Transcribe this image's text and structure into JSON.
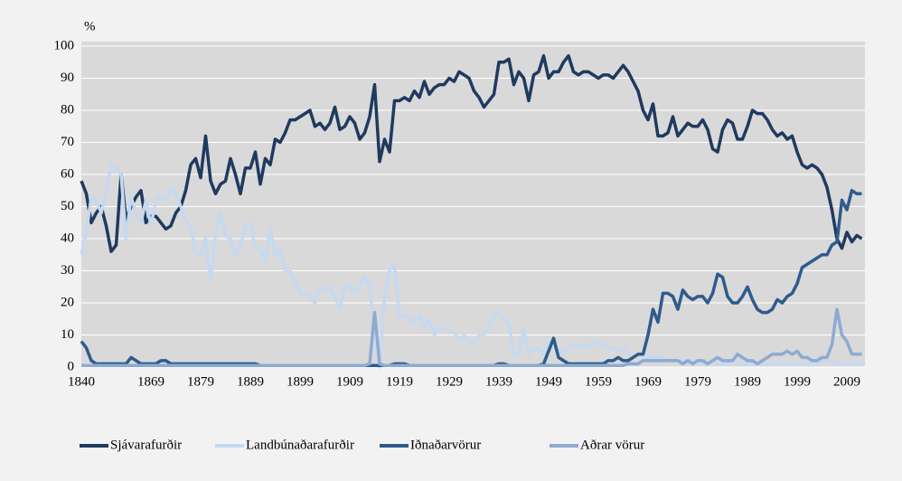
{
  "chart_data": {
    "type": "line",
    "y_label": "%",
    "categories": [
      "1840",
      null,
      null,
      null,
      null,
      null,
      null,
      null,
      null,
      null,
      null,
      null,
      null,
      null,
      "1869",
      null,
      null,
      null,
      null,
      null,
      null,
      null,
      null,
      null,
      "1879",
      null,
      null,
      null,
      null,
      null,
      null,
      null,
      null,
      null,
      "1889",
      null,
      null,
      null,
      null,
      null,
      null,
      null,
      null,
      null,
      "1899",
      null,
      null,
      null,
      null,
      null,
      null,
      null,
      null,
      null,
      "1909",
      null,
      null,
      null,
      null,
      null,
      null,
      null,
      null,
      null,
      "1919",
      null,
      null,
      null,
      null,
      null,
      null,
      null,
      null,
      null,
      "1929",
      null,
      null,
      null,
      null,
      null,
      null,
      null,
      null,
      null,
      "1939",
      null,
      null,
      null,
      null,
      null,
      null,
      null,
      null,
      null,
      "1949",
      null,
      null,
      null,
      null,
      null,
      null,
      null,
      null,
      null,
      "1959",
      null,
      null,
      null,
      null,
      null,
      null,
      null,
      null,
      null,
      "1969",
      null,
      null,
      null,
      null,
      null,
      null,
      null,
      null,
      null,
      "1979",
      null,
      null,
      null,
      null,
      null,
      null,
      null,
      null,
      null,
      "1989",
      null,
      null,
      null,
      null,
      null,
      null,
      null,
      null,
      null,
      "1999",
      null,
      null,
      null,
      null,
      null,
      null,
      null,
      null,
      null,
      "2009",
      null,
      null,
      null
    ],
    "series": [
      {
        "name": "Sjávarafurðir",
        "color": "#1f3a5f",
        "values": [
          58,
          54,
          45,
          48,
          50,
          44,
          36,
          38,
          60,
          46,
          50,
          53,
          55,
          45,
          47,
          47,
          45,
          43,
          44,
          48,
          50,
          55,
          63,
          65,
          59,
          72,
          58,
          54,
          57,
          58,
          65,
          60,
          54,
          62,
          62,
          67,
          57,
          65,
          63,
          71,
          70,
          73,
          77,
          77,
          78,
          79,
          80,
          75,
          76,
          74,
          76,
          81,
          74,
          75,
          78,
          76,
          71,
          73,
          78,
          88,
          64,
          71,
          67,
          83,
          83,
          84,
          83,
          86,
          84,
          89,
          85,
          87,
          88,
          88,
          90,
          89,
          92,
          91,
          90,
          86,
          84,
          81,
          83,
          85,
          95,
          95,
          96,
          88,
          92,
          90,
          83,
          91,
          92,
          97,
          90,
          92,
          92,
          95,
          97,
          92,
          91,
          92,
          92,
          91,
          90,
          91,
          91,
          90,
          92,
          94,
          92,
          89,
          86,
          80,
          77,
          82,
          72,
          72,
          73,
          78,
          72,
          74,
          76,
          75,
          75,
          77,
          74,
          68,
          67,
          74,
          77,
          76,
          71,
          71,
          75,
          80,
          79,
          79,
          77,
          74,
          72,
          73,
          71,
          72,
          67,
          63,
          62,
          63,
          62,
          60,
          56,
          49,
          40,
          37,
          42,
          39,
          41,
          40
        ]
      },
      {
        "name": "Landbúnaðarafurðir",
        "color": "#c5d9f1",
        "values": [
          35,
          42,
          53,
          52,
          48,
          55,
          63,
          62,
          60,
          40,
          53,
          48,
          45,
          52,
          44,
          52,
          53,
          52,
          56,
          54,
          50,
          46,
          44,
          36,
          35,
          40,
          27,
          41,
          48,
          41,
          40,
          35,
          38,
          44,
          45,
          37,
          37,
          33,
          43,
          35,
          37,
          30,
          30,
          27,
          23,
          23,
          22,
          20,
          25,
          24,
          25,
          22,
          18,
          25,
          25,
          23,
          25,
          28,
          25,
          10,
          0,
          22,
          30,
          32,
          16,
          16,
          15,
          14,
          16,
          12,
          15,
          10,
          12,
          12,
          11,
          11,
          8,
          10,
          7,
          8,
          10,
          10,
          13,
          16,
          17,
          15,
          14,
          4,
          4,
          12,
          4,
          6,
          6,
          4,
          8,
          6,
          6,
          4,
          6,
          7,
          6,
          7,
          6,
          8,
          7,
          7,
          6,
          6,
          5,
          6,
          4,
          3,
          4,
          4,
          3,
          3,
          3,
          3,
          2,
          2,
          2,
          2,
          2,
          2,
          1,
          1,
          1,
          2,
          1,
          1,
          1,
          2,
          1,
          1,
          1,
          1,
          1,
          1,
          1,
          1,
          1,
          1,
          1,
          1,
          1,
          1,
          1,
          1,
          1,
          2,
          2,
          2,
          1,
          1,
          1,
          1,
          1,
          1
        ]
      },
      {
        "name": "Iðnaðarvörur",
        "color": "#2f5b8c",
        "values": [
          8,
          6,
          2,
          1,
          1,
          1,
          1,
          1,
          1,
          1,
          3,
          2,
          1,
          1,
          1,
          1,
          2,
          2,
          1,
          1,
          1,
          1,
          1,
          1,
          1,
          1,
          1,
          1,
          1,
          1,
          1,
          1,
          1,
          1,
          1,
          1,
          0.5,
          0.5,
          0.5,
          0.5,
          0.5,
          0.5,
          0.5,
          0.5,
          0.5,
          0.5,
          0.5,
          0.5,
          0.5,
          0.5,
          0.5,
          0.5,
          0.5,
          0.5,
          0.5,
          0.5,
          0.5,
          0.5,
          0.5,
          0.5,
          0.5,
          0.5,
          0.5,
          1,
          1,
          1,
          0.5,
          0.5,
          0.5,
          0.5,
          0.5,
          0.5,
          0.5,
          0.5,
          0.5,
          0.5,
          0.5,
          0.5,
          0.5,
          0.5,
          0.5,
          0.5,
          0.5,
          0.5,
          1,
          1,
          0.5,
          0.5,
          0.5,
          0.5,
          0.5,
          0.5,
          0.5,
          1,
          5,
          9,
          3,
          2,
          1,
          1,
          1,
          1,
          1,
          1,
          1,
          1,
          2,
          2,
          3,
          2,
          2,
          3,
          4,
          4,
          10,
          18,
          14,
          23,
          23,
          22,
          18,
          24,
          22,
          21,
          22,
          22,
          20,
          23,
          29,
          28,
          22,
          20,
          20,
          22,
          25,
          21,
          18,
          17,
          17,
          18,
          21,
          20,
          22,
          23,
          26,
          31,
          32,
          33,
          34,
          35,
          35,
          38,
          39,
          52,
          49,
          55,
          54,
          54
        ]
      },
      {
        "name": "Aðrar vörur",
        "color": "#8eaad3",
        "values": [
          0.5,
          0.5,
          0.5,
          0.5,
          0.5,
          0.5,
          0.5,
          0.5,
          0.5,
          0.5,
          0.5,
          0.5,
          0.5,
          0.5,
          0.5,
          0.5,
          0.5,
          0.5,
          0.5,
          0.5,
          0.5,
          0.5,
          0.5,
          0.5,
          0.5,
          0.5,
          0.5,
          0.5,
          0.5,
          0.5,
          0.5,
          0.5,
          0.5,
          0.5,
          0.5,
          0.5,
          0.5,
          0.5,
          0.5,
          0.5,
          0.5,
          0.5,
          0.5,
          0.5,
          0.5,
          0.5,
          0.5,
          0.5,
          0.5,
          0.5,
          0.5,
          0.5,
          0.5,
          0.5,
          0.5,
          0.5,
          0.5,
          0.5,
          1,
          17,
          1,
          0.5,
          0.5,
          0.5,
          0.5,
          0.5,
          0.5,
          0.5,
          0.5,
          0.5,
          0.5,
          0.5,
          0.5,
          0.5,
          0.5,
          0.5,
          0.5,
          0.5,
          0.5,
          0.5,
          0.5,
          0.5,
          0.5,
          0.5,
          0.5,
          0.5,
          0.5,
          0.5,
          0.5,
          0.5,
          0.5,
          0.5,
          0.5,
          0.5,
          0.5,
          0.5,
          0.5,
          0.5,
          0.5,
          0.5,
          0.5,
          0.5,
          0.5,
          0.5,
          0.5,
          0.5,
          0.5,
          0.5,
          0.5,
          0.5,
          1,
          1,
          1,
          2,
          2,
          2,
          2,
          2,
          2,
          2,
          2,
          1,
          2,
          1,
          2,
          2,
          1,
          2,
          3,
          2,
          2,
          2,
          4,
          3,
          2,
          2,
          1,
          2,
          3,
          4,
          4,
          4,
          5,
          4,
          5,
          3,
          3,
          2,
          2,
          3,
          3,
          7,
          18,
          10,
          8,
          4,
          4,
          4
        ]
      }
    ],
    "ylim": [
      0,
      100
    ],
    "yticks": [
      0,
      10,
      20,
      30,
      40,
      50,
      60,
      70,
      80,
      90,
      100
    ],
    "grid": true
  }
}
